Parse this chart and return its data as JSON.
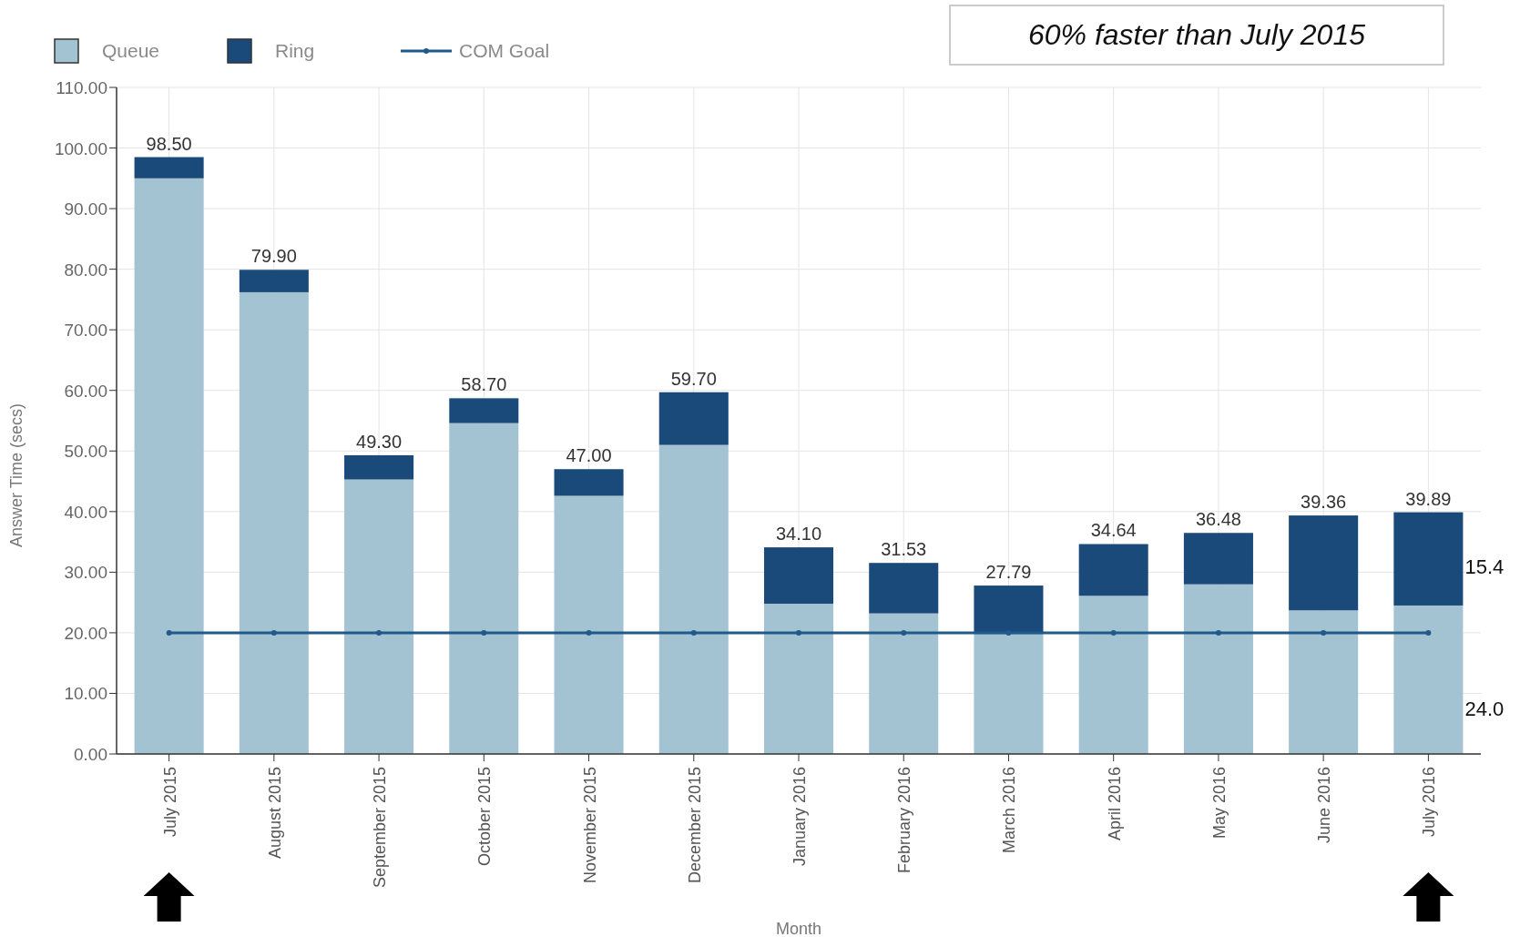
{
  "chart_data": {
    "type": "bar",
    "title": "60% faster than July 2015",
    "xlabel": "Month",
    "ylabel": "Answer Time (secs)",
    "categories": [
      "July 2015",
      "August 2015",
      "September 2015",
      "October 2015",
      "November 2015",
      "December 2015",
      "January 2016",
      "February 2016",
      "March 2016",
      "April 2016",
      "May 2016",
      "June 2016",
      "July 2016"
    ],
    "stacked": true,
    "series": [
      {
        "name": "Queue",
        "color": "#a4c3d2",
        "values": [
          95.0,
          76.2,
          45.3,
          54.6,
          42.6,
          51.0,
          24.8,
          23.2,
          19.8,
          26.1,
          28.0,
          23.7,
          24.5
        ]
      },
      {
        "name": "Ring",
        "color": "#1a4a7a",
        "values": [
          3.5,
          3.7,
          4.0,
          4.1,
          4.4,
          8.7,
          9.3,
          8.33,
          7.99,
          8.54,
          8.48,
          15.66,
          15.39
        ]
      },
      {
        "name": "COM Goal",
        "type": "line",
        "color": "#1f5a8a",
        "marker": "circle",
        "values": [
          20,
          20,
          20,
          20,
          20,
          20,
          20,
          20,
          20,
          20,
          20,
          20,
          20
        ]
      }
    ],
    "totals": [
      "98.50",
      "79.90",
      "49.30",
      "58.70",
      "47.00",
      "59.70",
      "34.10",
      "31.53",
      "27.79",
      "34.64",
      "36.48",
      "39.36",
      "39.89"
    ],
    "annotations": [
      "15.4",
      "24.0"
    ],
    "ylim": [
      0,
      110
    ],
    "yticks": [
      {
        "value": 0,
        "label": "0.00"
      },
      {
        "value": 10,
        "label": "10.00"
      },
      {
        "value": 20,
        "label": "20.00"
      },
      {
        "value": 30,
        "label": "30.00"
      },
      {
        "value": 40,
        "label": "40.00"
      },
      {
        "value": 50,
        "label": "50.00"
      },
      {
        "value": 60,
        "label": "60.00"
      },
      {
        "value": 70,
        "label": "70.00"
      },
      {
        "value": 80,
        "label": "80.00"
      },
      {
        "value": 90,
        "label": "90.00"
      },
      {
        "value": 100,
        "label": "100.00"
      },
      {
        "value": 110,
        "label": "110.00"
      }
    ],
    "grid": true,
    "legend": "top left"
  }
}
